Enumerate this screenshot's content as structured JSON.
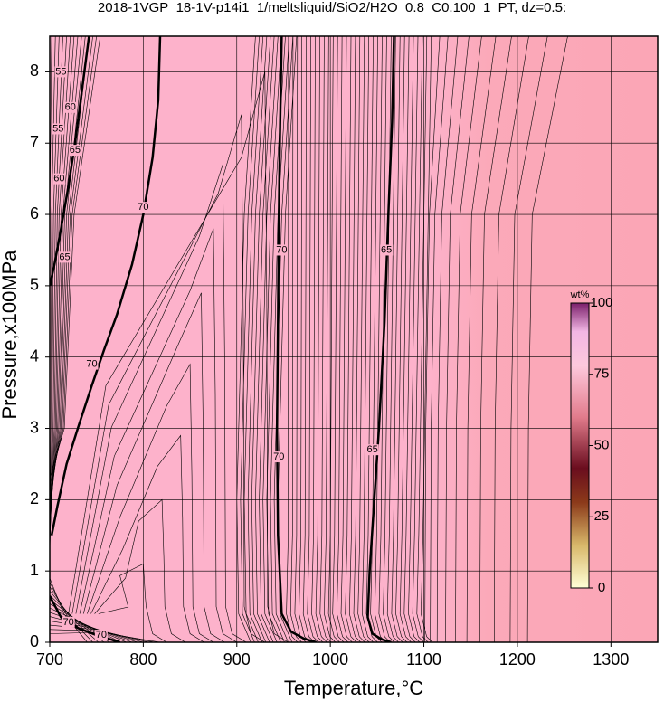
{
  "chart_data": {
    "type": "contour",
    "title": "2018-1VGP_18-1V-p14i1_1/meltsliquid/SiO2/H2O_0.8_C0.100_1_PT, dz=0.5:",
    "x_label": "Temperature,°C",
    "y_label": "Pressure,x100MPa",
    "xlim": [
      700,
      1350
    ],
    "ylim": [
      0,
      8.5
    ],
    "xticks": [
      700,
      800,
      900,
      1000,
      1100,
      1200,
      1300
    ],
    "yticks": [
      0,
      1,
      2,
      3,
      4,
      5,
      6,
      7,
      8
    ],
    "grid": true,
    "contours": [
      {
        "level": 70,
        "x": [
          818,
          816,
          810,
          800,
          788,
          772,
          758,
          745,
          730,
          718,
          708,
          702
        ],
        "y": [
          8.5,
          7.6,
          6.8,
          6.0,
          5.3,
          4.6,
          4.1,
          3.6,
          3.0,
          2.5,
          1.9,
          1.5
        ]
      },
      {
        "level": 70,
        "x": [
          700,
          712,
          730,
          750,
          765,
          775
        ],
        "y": [
          0.65,
          0.35,
          0.2,
          0.1,
          0.04,
          0.0
        ]
      },
      {
        "level": 70,
        "x": [
          948,
          946,
          945,
          944,
          943,
          944,
          948,
          958,
          972,
          985
        ],
        "y": [
          8.5,
          7.0,
          6.0,
          4.5,
          3.0,
          1.5,
          0.4,
          0.15,
          0.05,
          0.0
        ]
      },
      {
        "level": 65,
        "x": [
          1068,
          1066,
          1062,
          1058,
          1052,
          1046,
          1042,
          1040,
          1045,
          1055,
          1065
        ],
        "y": [
          8.5,
          7.3,
          6.0,
          4.5,
          3.0,
          1.8,
          1.0,
          0.35,
          0.12,
          0.04,
          0.0
        ]
      },
      {
        "level": 65,
        "x": [
          742,
          735,
          727,
          720,
          712,
          705,
          700
        ],
        "y": [
          8.5,
          7.8,
          7.0,
          6.4,
          5.8,
          5.3,
          5.0
        ]
      }
    ],
    "contour_labels": [
      {
        "level": 70,
        "x": 745,
        "y": 3.9
      },
      {
        "level": 70,
        "x": 800,
        "y": 6.1
      },
      {
        "level": 70,
        "x": 720,
        "y": 0.28
      },
      {
        "level": 70,
        "x": 755,
        "y": 0.1
      },
      {
        "level": 70,
        "x": 948,
        "y": 5.5
      },
      {
        "level": 70,
        "x": 945,
        "y": 2.6
      },
      {
        "level": 65,
        "x": 1060,
        "y": 5.5
      },
      {
        "level": 65,
        "x": 1045,
        "y": 2.7
      },
      {
        "level": 65,
        "x": 716,
        "y": 5.4
      },
      {
        "level": 65,
        "x": 727,
        "y": 6.9
      },
      {
        "level": 60,
        "x": 710,
        "y": 6.5
      },
      {
        "level": 60,
        "x": 722,
        "y": 7.5
      },
      {
        "level": 55,
        "x": 709,
        "y": 7.2
      },
      {
        "level": 55,
        "x": 712,
        "y": 8.0
      }
    ],
    "colorbar": {
      "label": "wt%",
      "lim": [
        0,
        100
      ],
      "ticks": [
        0,
        25,
        50,
        75,
        100
      ]
    }
  }
}
